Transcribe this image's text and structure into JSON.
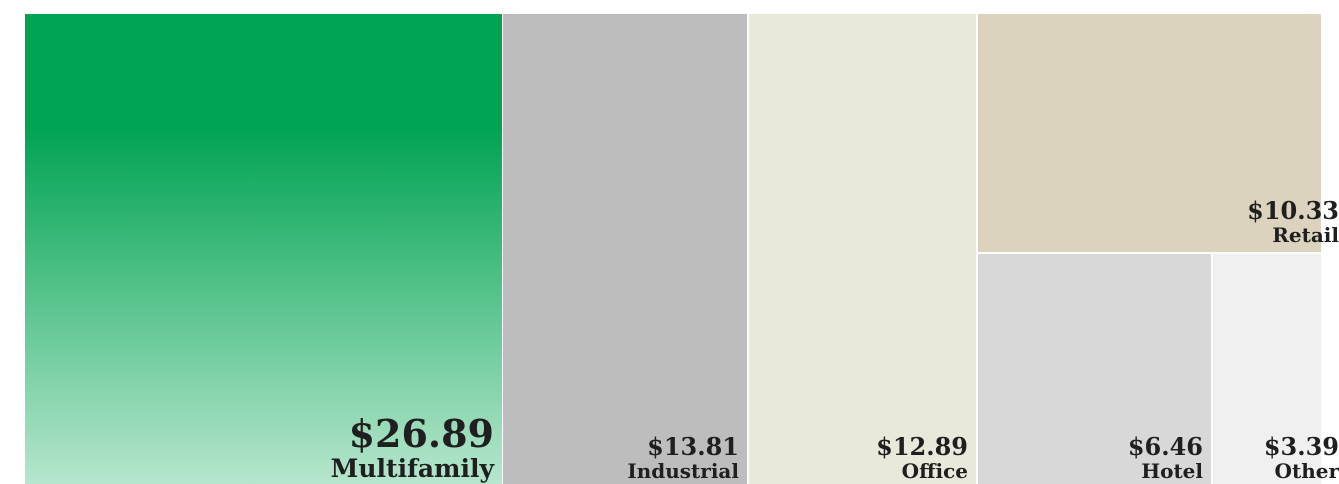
{
  "chart_data": {
    "type": "treemap",
    "items": [
      {
        "name": "Multifamily",
        "value": 26.89,
        "value_label": "$26.89",
        "color": "#00a352",
        "color_end": "#b6e6cd"
      },
      {
        "name": "Industrial",
        "value": 13.81,
        "value_label": "$13.81",
        "color": "#bdbdbd"
      },
      {
        "name": "Office",
        "value": 12.89,
        "value_label": "$12.89",
        "color": "#eae7db"
      },
      {
        "name": "Retail",
        "value": 10.33,
        "value_label": "$10.33",
        "color": "#dbd3bd"
      },
      {
        "name": "Hotel",
        "value": 6.46,
        "value_label": "$6.46",
        "color": "#d8d8d8"
      },
      {
        "name": "Other",
        "value": 3.39,
        "value_label": "$3.39",
        "color": "#f0f0f0"
      }
    ]
  }
}
